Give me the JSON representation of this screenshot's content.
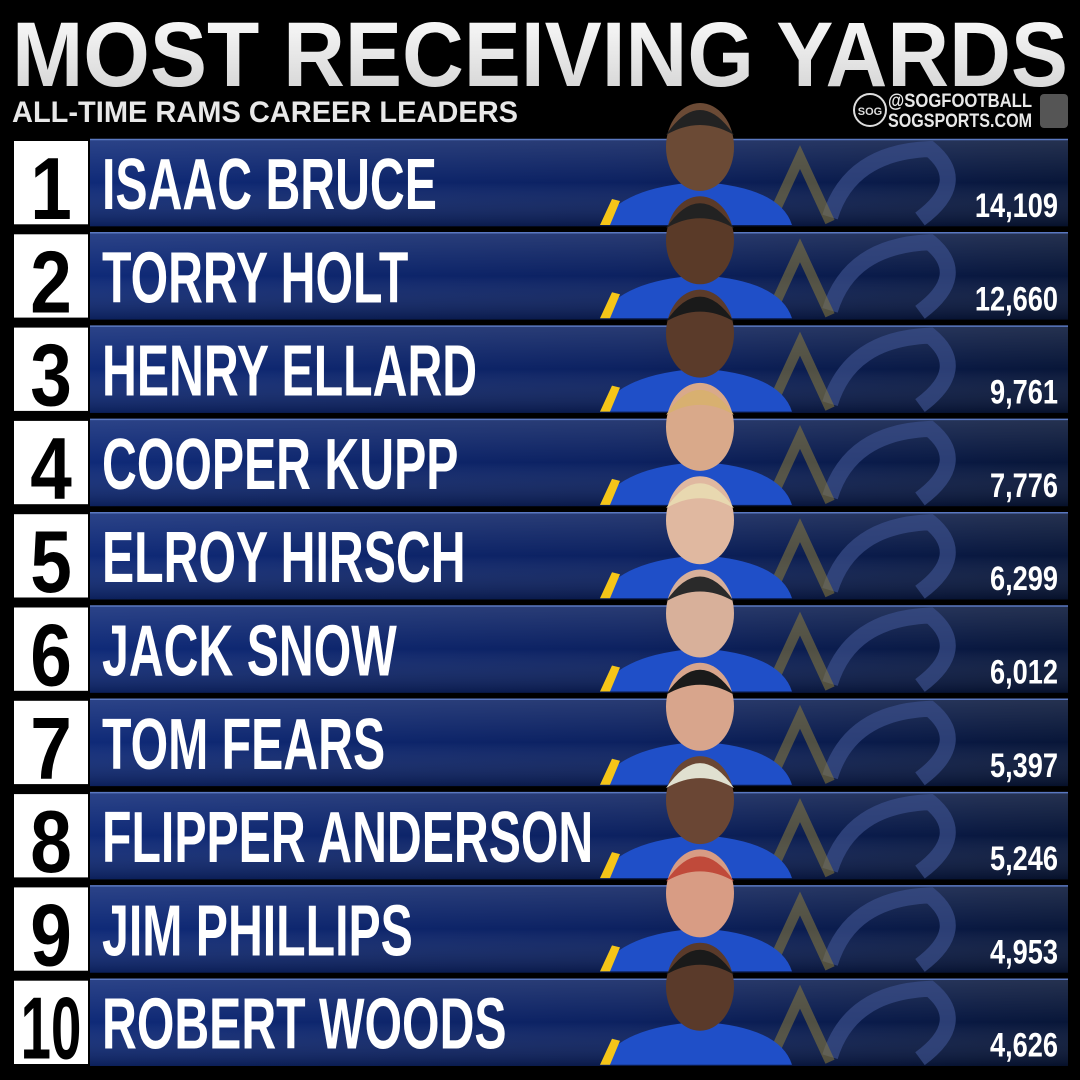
{
  "header": {
    "title": "MOST RECEIVING YARDS",
    "subtitle": "ALL-TIME RAMS CAREER LEADERS",
    "handle": "@SOGFOOTBALL",
    "site": "SOGSPORTS.COM",
    "badge": "SOG"
  },
  "rows": [
    {
      "rank": "1",
      "name": "ISAAC BRUCE",
      "yards": "14,109"
    },
    {
      "rank": "2",
      "name": "TORRY HOLT",
      "yards": "12,660"
    },
    {
      "rank": "3",
      "name": "HENRY ELLARD",
      "yards": "9,761"
    },
    {
      "rank": "4",
      "name": "COOPER KUPP",
      "yards": "7,776"
    },
    {
      "rank": "5",
      "name": "ELROY HIRSCH",
      "yards": "6,299"
    },
    {
      "rank": "6",
      "name": "JACK SNOW",
      "yards": "6,012"
    },
    {
      "rank": "7",
      "name": "TOM FEARS",
      "yards": "5,397"
    },
    {
      "rank": "8",
      "name": "FLIPPER ANDERSON",
      "yards": "5,246"
    },
    {
      "rank": "9",
      "name": "JIM PHILLIPS",
      "yards": "4,953"
    },
    {
      "rank": "10",
      "name": "ROBERT WOODS",
      "yards": "4,626"
    }
  ]
}
